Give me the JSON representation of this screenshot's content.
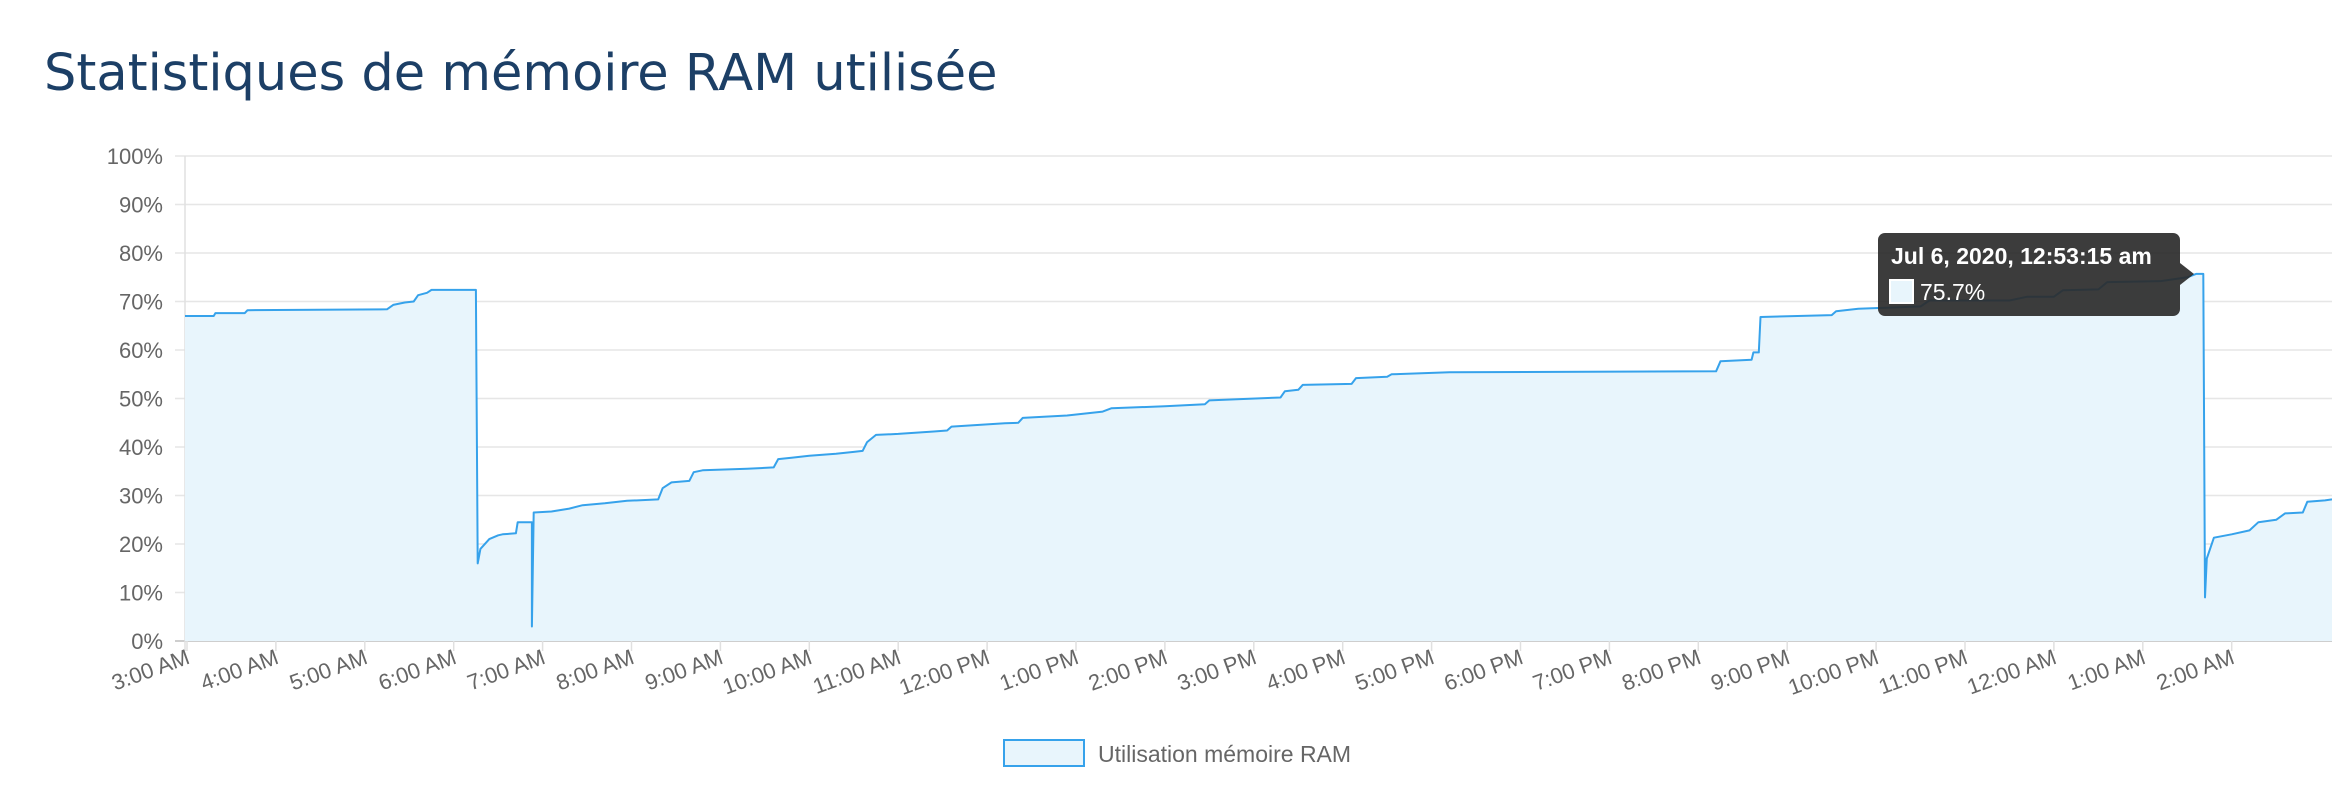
{
  "page": {
    "title": "Statistiques de mémoire RAM utilisée"
  },
  "colors": {
    "title": "#1c3f66",
    "line": "#36a2eb",
    "fill": "#e8f5fc",
    "grid": "#e6e6e6",
    "axis_text": "#666666",
    "tooltip_bg": "#2b2b2b"
  },
  "chart_data": {
    "type": "area",
    "title": "",
    "xlabel": "",
    "ylabel": "",
    "ylim": [
      0,
      100
    ],
    "y_ticks": [
      "0%",
      "10%",
      "20%",
      "30%",
      "40%",
      "50%",
      "60%",
      "70%",
      "80%",
      "90%",
      "100%"
    ],
    "x_ticks": [
      "3:00 AM",
      "4:00 AM",
      "5:00 AM",
      "6:00 AM",
      "7:00 AM",
      "8:00 AM",
      "9:00 AM",
      "10:00 AM",
      "11:00 AM",
      "12:00 PM",
      "1:00 PM",
      "2:00 PM",
      "3:00 PM",
      "4:00 PM",
      "5:00 PM",
      "6:00 PM",
      "7:00 PM",
      "8:00 PM",
      "9:00 PM",
      "10:00 PM",
      "11:00 PM",
      "12:00 AM",
      "1:00 AM",
      "2:00 AM"
    ],
    "x_unit": "hours from 3:00 AM",
    "grid": true,
    "legend_position": "bottom",
    "series": [
      {
        "name": "Utilisation mémoire RAM",
        "points": [
          [
            -0.05,
            67.0
          ],
          [
            0.3,
            67.0
          ],
          [
            0.32,
            67.6
          ],
          [
            0.65,
            67.6
          ],
          [
            0.68,
            68.2
          ],
          [
            2.25,
            68.4
          ],
          [
            2.32,
            69.3
          ],
          [
            2.45,
            69.8
          ],
          [
            2.55,
            70.0
          ],
          [
            2.6,
            71.3
          ],
          [
            2.7,
            71.8
          ],
          [
            2.75,
            72.4
          ],
          [
            3.25,
            72.4
          ],
          [
            3.27,
            16.0
          ],
          [
            3.3,
            19.0
          ],
          [
            3.4,
            21.0
          ],
          [
            3.5,
            21.8
          ],
          [
            3.55,
            22.0
          ],
          [
            3.7,
            22.2
          ],
          [
            3.72,
            24.5
          ],
          [
            3.88,
            24.5
          ],
          [
            3.88,
            3.0
          ],
          [
            3.9,
            26.5
          ],
          [
            4.1,
            26.7
          ],
          [
            4.3,
            27.3
          ],
          [
            4.45,
            28.0
          ],
          [
            4.7,
            28.4
          ],
          [
            4.95,
            28.9
          ],
          [
            5.3,
            29.2
          ],
          [
            5.35,
            31.5
          ],
          [
            5.45,
            32.7
          ],
          [
            5.65,
            33.0
          ],
          [
            5.7,
            34.8
          ],
          [
            5.8,
            35.2
          ],
          [
            6.3,
            35.5
          ],
          [
            6.6,
            35.8
          ],
          [
            6.65,
            37.5
          ],
          [
            6.8,
            37.8
          ],
          [
            7.0,
            38.2
          ],
          [
            7.3,
            38.6
          ],
          [
            7.5,
            39.0
          ],
          [
            7.6,
            39.2
          ],
          [
            7.65,
            41.0
          ],
          [
            7.75,
            42.5
          ],
          [
            8.0,
            42.7
          ],
          [
            8.4,
            43.2
          ],
          [
            8.55,
            43.4
          ],
          [
            8.6,
            44.2
          ],
          [
            9.2,
            44.9
          ],
          [
            9.35,
            45.0
          ],
          [
            9.4,
            46.0
          ],
          [
            9.9,
            46.5
          ],
          [
            10.3,
            47.3
          ],
          [
            10.4,
            48.0
          ],
          [
            11.0,
            48.4
          ],
          [
            11.45,
            48.8
          ],
          [
            11.5,
            49.6
          ],
          [
            12.3,
            50.2
          ],
          [
            12.35,
            51.5
          ],
          [
            12.5,
            51.8
          ],
          [
            12.55,
            52.8
          ],
          [
            13.1,
            53.0
          ],
          [
            13.15,
            54.2
          ],
          [
            13.5,
            54.5
          ],
          [
            13.55,
            55.0
          ],
          [
            14.2,
            55.4
          ],
          [
            17.2,
            55.6
          ],
          [
            17.25,
            57.7
          ],
          [
            17.6,
            58.0
          ],
          [
            17.62,
            59.5
          ],
          [
            17.68,
            59.5
          ],
          [
            17.7,
            66.8
          ],
          [
            18.5,
            67.2
          ],
          [
            18.55,
            68.0
          ],
          [
            18.8,
            68.5
          ],
          [
            19.5,
            69.0
          ],
          [
            19.6,
            70.2
          ],
          [
            20.5,
            70.2
          ],
          [
            20.7,
            71.0
          ],
          [
            21.0,
            71.0
          ],
          [
            21.1,
            72.3
          ],
          [
            21.5,
            72.5
          ],
          [
            21.6,
            74.0
          ],
          [
            22.2,
            74.2
          ],
          [
            22.5,
            75.0
          ],
          [
            22.6,
            75.7
          ],
          [
            22.68,
            75.7
          ],
          [
            22.7,
            9.0
          ],
          [
            22.72,
            17.0
          ],
          [
            22.8,
            21.3
          ],
          [
            23.0,
            22.0
          ],
          [
            23.2,
            22.8
          ],
          [
            23.3,
            24.5
          ],
          [
            23.5,
            25.0
          ],
          [
            23.6,
            26.3
          ],
          [
            23.8,
            26.5
          ],
          [
            23.85,
            28.7
          ],
          [
            24.05,
            29.0
          ],
          [
            24.2,
            29.2
          ]
        ]
      }
    ],
    "tooltip": {
      "title": "Jul 6, 2020, 12:53:15 am",
      "value": "75.7%"
    }
  }
}
